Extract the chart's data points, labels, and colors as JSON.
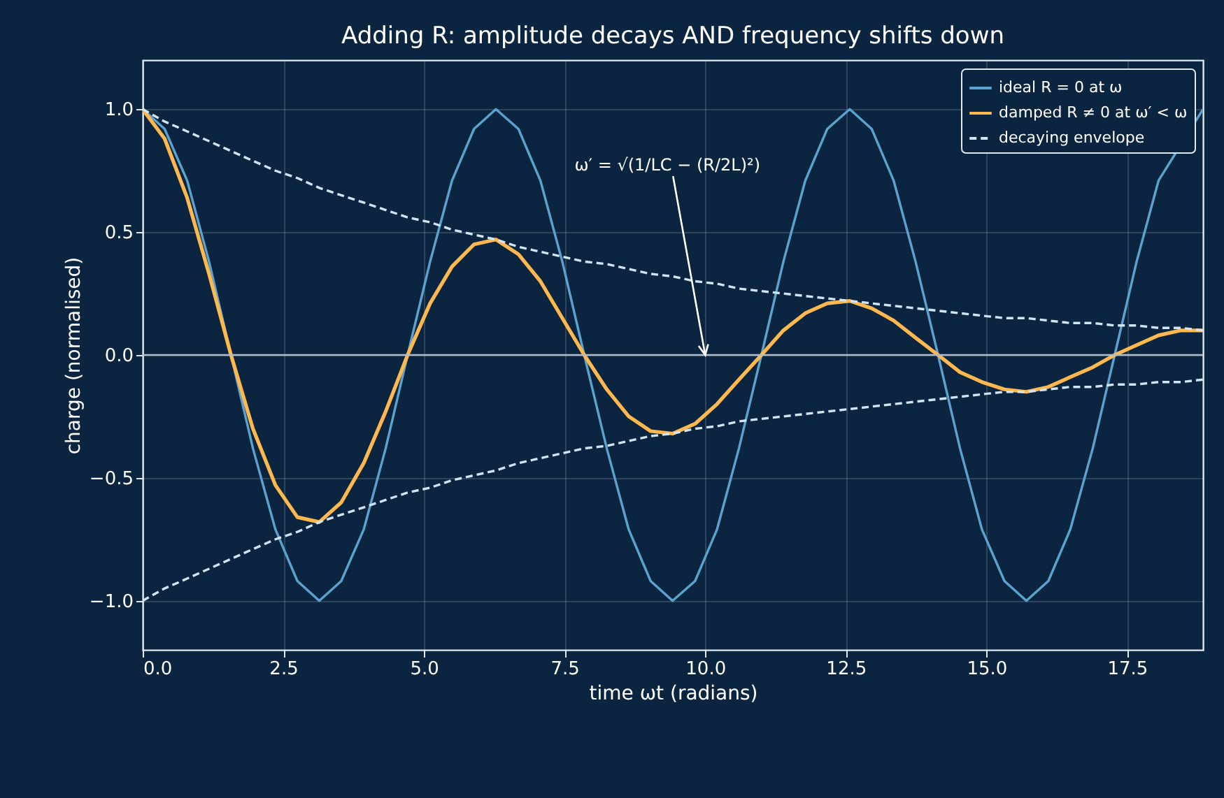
{
  "chart_data": {
    "type": "line",
    "title": "Adding R: amplitude decays AND frequency shifts down",
    "xlabel": "time  ωt  (radians)",
    "ylabel": "charge (normalised)",
    "x": [
      0,
      0.39,
      0.79,
      1.18,
      1.57,
      1.96,
      2.36,
      2.75,
      3.14,
      3.53,
      3.93,
      4.32,
      4.71,
      5.11,
      5.5,
      5.89,
      6.28,
      6.68,
      7.07,
      7.46,
      7.85,
      8.25,
      8.64,
      9.03,
      9.42,
      9.82,
      10.21,
      10.6,
      11.0,
      11.39,
      11.78,
      12.17,
      12.57,
      12.96,
      13.35,
      13.74,
      14.14,
      14.53,
      14.92,
      15.32,
      15.71,
      16.1,
      16.49,
      16.89,
      17.28,
      17.67,
      18.06,
      18.46,
      18.85
    ],
    "series": [
      {
        "name": "ideal R = 0 at ω",
        "color": "#5ba3cf",
        "values": [
          1,
          0.92,
          0.71,
          0.38,
          0,
          -0.38,
          -0.71,
          -0.92,
          -1,
          -0.92,
          -0.71,
          -0.38,
          0,
          0.38,
          0.71,
          0.92,
          1,
          0.92,
          0.71,
          0.38,
          0,
          -0.38,
          -0.71,
          -0.92,
          -1,
          -0.92,
          -0.71,
          -0.38,
          0,
          0.38,
          0.71,
          0.92,
          1,
          0.92,
          0.71,
          0.38,
          0,
          -0.38,
          -0.71,
          -0.92,
          -1,
          -0.92,
          -0.71,
          -0.38,
          0,
          0.38,
          0.71,
          null,
          1
        ]
      },
      {
        "name": "damped R ≠ 0 at ω′ < ω",
        "color": "#ffb84d",
        "values": [
          1,
          0.88,
          0.64,
          0.33,
          0,
          -0.3,
          -0.53,
          -0.66,
          -0.68,
          -0.6,
          -0.44,
          -0.23,
          0,
          0.21,
          0.36,
          0.45,
          0.47,
          0.41,
          0.3,
          0.15,
          0,
          -0.14,
          -0.25,
          -0.31,
          -0.32,
          -0.28,
          -0.2,
          -0.1,
          0,
          0.1,
          0.17,
          0.21,
          0.22,
          0.19,
          0.14,
          0.07,
          0,
          -0.07,
          -0.11,
          -0.14,
          -0.15,
          -0.13,
          -0.09,
          -0.05,
          0,
          0.04,
          0.08,
          0.1,
          0.1
        ]
      },
      {
        "name": "decaying envelope",
        "color": "#d0e4f2",
        "line_style": "dashed",
        "values": [
          1,
          0.95,
          0.91,
          0.87,
          0.83,
          0.79,
          0.75,
          0.72,
          0.68,
          0.65,
          0.62,
          0.59,
          0.56,
          0.54,
          0.51,
          0.49,
          0.47,
          0.44,
          0.42,
          0.4,
          0.38,
          0.37,
          0.35,
          0.33,
          0.32,
          0.3,
          0.29,
          0.27,
          0.26,
          0.25,
          0.24,
          0.23,
          0.22,
          0.21,
          0.2,
          0.19,
          0.18,
          0.17,
          0.16,
          0.15,
          0.15,
          0.14,
          0.13,
          0.13,
          0.12,
          0.12,
          0.11,
          0.11,
          0.1
        ]
      },
      {
        "color": "#d0e4f2",
        "line_style": "dashed",
        "values": [
          -1,
          -0.95,
          -0.91,
          -0.87,
          -0.83,
          -0.79,
          -0.75,
          -0.72,
          -0.68,
          -0.65,
          -0.62,
          -0.59,
          -0.56,
          -0.54,
          -0.51,
          -0.49,
          -0.47,
          -0.44,
          -0.42,
          -0.4,
          -0.38,
          -0.37,
          -0.35,
          -0.33,
          -0.32,
          -0.3,
          -0.29,
          -0.27,
          -0.26,
          -0.25,
          -0.24,
          -0.23,
          -0.22,
          -0.21,
          -0.2,
          -0.19,
          -0.18,
          -0.17,
          -0.16,
          -0.15,
          -0.15,
          -0.14,
          -0.13,
          -0.13,
          -0.12,
          -0.12,
          -0.11,
          -0.11,
          -0.1
        ]
      }
    ],
    "xlim": [
      0,
      18.85
    ],
    "xticks": [
      {
        "value": 0,
        "label": "0.0"
      },
      2.5,
      {
        "value": 5,
        "label": "5.0"
      },
      7.5,
      {
        "value": 10,
        "label": "10.0"
      },
      12.5,
      {
        "value": 15,
        "label": "15.0"
      },
      17.5
    ],
    "ylim": [
      -1.2,
      1.2
    ],
    "yticks": [
      {
        "value": -1,
        "label": "−1.0"
      },
      -0.5,
      {
        "value": 0,
        "label": "0.0"
      },
      0.5,
      {
        "value": 1,
        "label": "1.0"
      }
    ],
    "ref_lines": [
      {
        "axis": "y",
        "value": 0,
        "color": "#b0bcc8"
      }
    ],
    "annotations": [
      {
        "text": "ω′ = √(1/LC − (R/2L)²)",
        "x": 10,
        "y": 0
      }
    ],
    "grid": true,
    "legend": "top right",
    "line_style": "solid"
  }
}
